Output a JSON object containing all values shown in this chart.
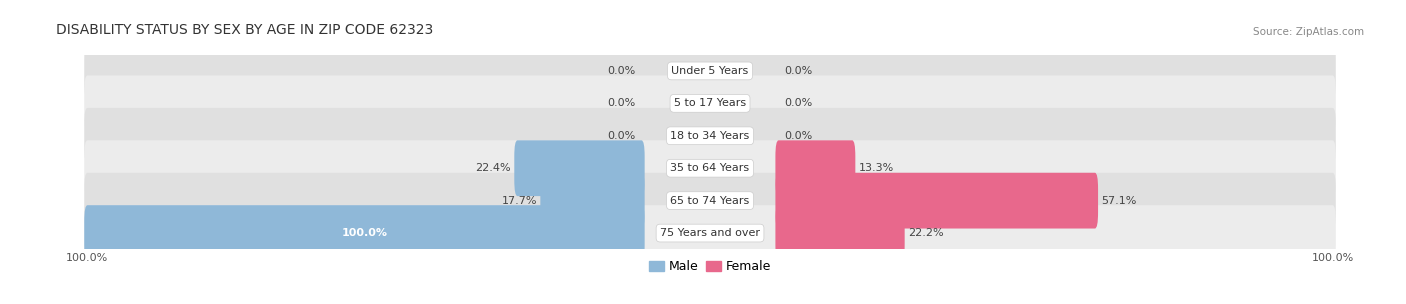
{
  "title": "DISABILITY STATUS BY SEX BY AGE IN ZIP CODE 62323",
  "source": "Source: ZipAtlas.com",
  "categories": [
    "Under 5 Years",
    "5 to 17 Years",
    "18 to 34 Years",
    "35 to 64 Years",
    "65 to 74 Years",
    "75 Years and over"
  ],
  "male_values": [
    0.0,
    0.0,
    0.0,
    22.4,
    17.7,
    100.0
  ],
  "female_values": [
    0.0,
    0.0,
    0.0,
    13.3,
    57.1,
    22.2
  ],
  "male_color": "#8fb8d8",
  "female_color": "#e8688c",
  "bar_bg_color": "#e0e0e0",
  "bar_bg_color2": "#ececec",
  "max_value": 100.0,
  "label_fontsize": 8.0,
  "title_fontsize": 10,
  "category_fontsize": 8.0,
  "legend_fontsize": 9,
  "source_fontsize": 7.5,
  "axis_label_fontsize": 8.0
}
